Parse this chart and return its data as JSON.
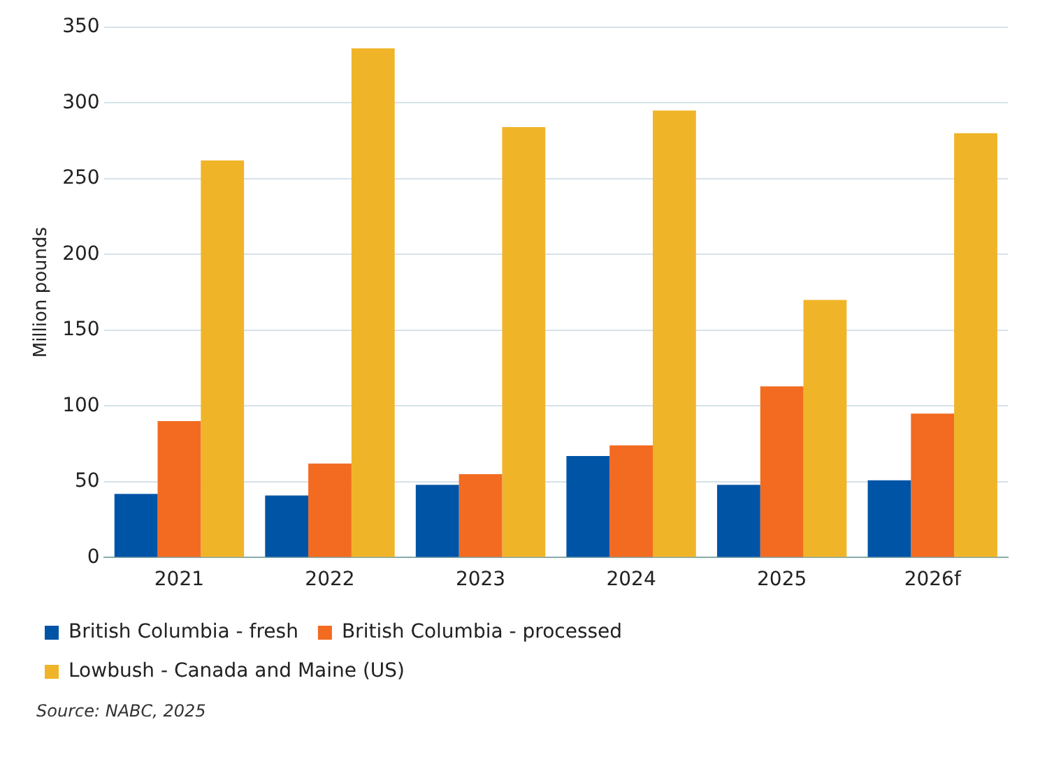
{
  "chart_data": {
    "type": "bar",
    "ylabel": "Million pounds",
    "categories": [
      "2021",
      "2022",
      "2023",
      "2024",
      "2025",
      "2026f"
    ],
    "series": [
      {
        "name": "British Columbia - fresh",
        "color": "#0054a6",
        "values": [
          42,
          41,
          48,
          67,
          48,
          51
        ]
      },
      {
        "name": "British Columbia - processed",
        "color": "#f26b21",
        "values": [
          90,
          62,
          55,
          74,
          113,
          95
        ]
      },
      {
        "name": "Lowbush - Canada and Maine (US)",
        "color": "#f0b429",
        "values": [
          262,
          336,
          284,
          295,
          170,
          280
        ]
      }
    ],
    "ylim": [
      0,
      350
    ],
    "yticks": [
      0,
      50,
      100,
      150,
      200,
      250,
      300,
      350
    ],
    "grid": "y",
    "legend": "bottom",
    "annotations": [
      "Source: NABC, 2025"
    ]
  }
}
